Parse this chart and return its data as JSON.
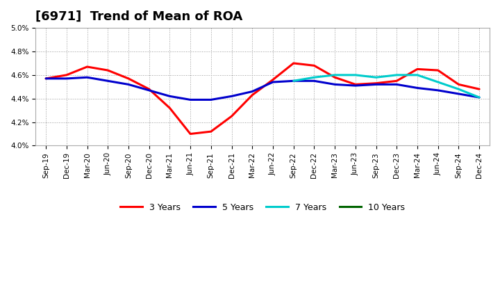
{
  "title": "[6971]  Trend of Mean of ROA",
  "ylim": [
    4.0,
    5.0
  ],
  "yticks": [
    4.0,
    4.2,
    4.4,
    4.6,
    4.8,
    5.0
  ],
  "x_labels": [
    "Sep-19",
    "Dec-19",
    "Mar-20",
    "Jun-20",
    "Sep-20",
    "Dec-20",
    "Mar-21",
    "Jun-21",
    "Sep-21",
    "Dec-21",
    "Mar-22",
    "Jun-22",
    "Sep-22",
    "Dec-22",
    "Mar-23",
    "Jun-23",
    "Sep-23",
    "Dec-23",
    "Mar-24",
    "Jun-24",
    "Sep-24",
    "Dec-24"
  ],
  "series_3y": [
    4.57,
    4.6,
    4.67,
    4.64,
    4.57,
    4.48,
    4.32,
    4.1,
    4.12,
    4.25,
    4.43,
    4.56,
    4.7,
    4.68,
    4.58,
    4.52,
    4.53,
    4.55,
    4.65,
    4.64,
    4.52,
    4.48
  ],
  "series_5y": [
    4.57,
    4.57,
    4.58,
    4.55,
    4.52,
    4.47,
    4.42,
    4.39,
    4.39,
    4.42,
    4.46,
    4.54,
    4.55,
    4.55,
    4.52,
    4.51,
    4.52,
    4.52,
    4.49,
    4.47,
    4.44,
    4.41
  ],
  "series_7y": [
    null,
    null,
    null,
    null,
    null,
    null,
    null,
    null,
    null,
    null,
    null,
    null,
    4.55,
    4.58,
    4.6,
    4.6,
    4.58,
    4.6,
    4.6,
    4.54,
    4.48,
    4.41
  ],
  "series_10y": [
    null,
    null,
    null,
    null,
    null,
    null,
    null,
    null,
    null,
    null,
    null,
    null,
    null,
    null,
    null,
    null,
    null,
    null,
    null,
    null,
    null,
    null
  ],
  "color_3y": "#FF0000",
  "color_5y": "#0000CD",
  "color_7y": "#00CCCC",
  "color_10y": "#006400",
  "linewidth": 2.2,
  "background_color": "#ffffff",
  "grid_color": "#999999",
  "title_fontsize": 13,
  "tick_fontsize": 7.5,
  "legend_fontsize": 9
}
